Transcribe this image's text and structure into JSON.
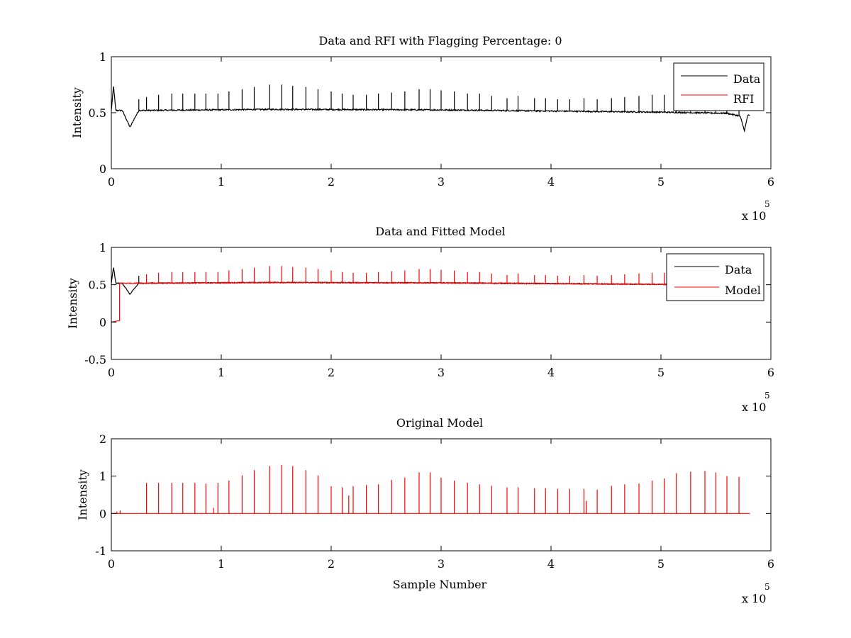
{
  "colors": {
    "data": "#000000",
    "model": "#ff0000",
    "axes": "#000000",
    "background": "#ffffff"
  },
  "chart_data": [
    {
      "type": "line",
      "title": "Data and RFI with Flagging Percentage: 0",
      "xlabel": "",
      "ylabel": "Intensity",
      "xlim": [
        0,
        6
      ],
      "ylim": [
        0,
        1
      ],
      "x_exponent_label": "x 10",
      "x_exponent_power": "5",
      "xticks": [
        "0",
        "1",
        "2",
        "3",
        "4",
        "5",
        "6"
      ],
      "yticks": [
        "0",
        "0.5",
        "1"
      ],
      "legend_placement": "top-right",
      "series": [
        {
          "name": "Data",
          "color": "#000000",
          "x_range": [
            0,
            5.81
          ],
          "baseline": [
            [
              0,
              0.52
            ],
            [
              0.02,
              0.74
            ],
            [
              0.04,
              0.52
            ],
            [
              0.1,
              0.52
            ],
            [
              0.17,
              0.37
            ],
            [
              0.2,
              0.43
            ],
            [
              0.25,
              0.52
            ],
            [
              1.5,
              0.53
            ],
            [
              3.0,
              0.525
            ],
            [
              4.0,
              0.515
            ],
            [
              5.0,
              0.505
            ],
            [
              5.6,
              0.495
            ],
            [
              5.72,
              0.47
            ],
            [
              5.76,
              0.34
            ],
            [
              5.79,
              0.48
            ],
            [
              5.81,
              0.47
            ]
          ],
          "spikes": [
            [
              0.25,
              0.62
            ],
            [
              0.32,
              0.64
            ],
            [
              0.43,
              0.66
            ],
            [
              0.55,
              0.67
            ],
            [
              0.65,
              0.67
            ],
            [
              0.76,
              0.67
            ],
            [
              0.86,
              0.67
            ],
            [
              0.97,
              0.67
            ],
            [
              1.07,
              0.69
            ],
            [
              1.19,
              0.71
            ],
            [
              1.3,
              0.73
            ],
            [
              1.44,
              0.75
            ],
            [
              1.55,
              0.75
            ],
            [
              1.65,
              0.74
            ],
            [
              1.77,
              0.73
            ],
            [
              1.88,
              0.71
            ],
            [
              2.0,
              0.69
            ],
            [
              2.1,
              0.67
            ],
            [
              2.2,
              0.66
            ],
            [
              2.32,
              0.66
            ],
            [
              2.43,
              0.67
            ],
            [
              2.55,
              0.68
            ],
            [
              2.67,
              0.69
            ],
            [
              2.8,
              0.71
            ],
            [
              2.9,
              0.71
            ],
            [
              3.0,
              0.7
            ],
            [
              3.12,
              0.69
            ],
            [
              3.24,
              0.67
            ],
            [
              3.35,
              0.67
            ],
            [
              3.46,
              0.65
            ],
            [
              3.6,
              0.63
            ],
            [
              3.7,
              0.65
            ],
            [
              3.85,
              0.63
            ],
            [
              3.95,
              0.63
            ],
            [
              4.06,
              0.62
            ],
            [
              4.17,
              0.62
            ],
            [
              4.3,
              0.63
            ],
            [
              4.42,
              0.62
            ],
            [
              4.55,
              0.63
            ],
            [
              4.67,
              0.64
            ],
            [
              4.8,
              0.65
            ],
            [
              4.92,
              0.66
            ],
            [
              5.03,
              0.66
            ],
            [
              5.14,
              0.65
            ],
            [
              5.27,
              0.64
            ],
            [
              5.4,
              0.64
            ],
            [
              5.5,
              0.62
            ],
            [
              5.6,
              0.62
            ],
            [
              5.71,
              0.61
            ]
          ]
        },
        {
          "name": "RFI",
          "color": "#ff0000",
          "flagged_points": []
        }
      ]
    },
    {
      "type": "line",
      "title": "Data and Fitted Model",
      "xlabel": "",
      "ylabel": "Intensity",
      "xlim": [
        0,
        6
      ],
      "ylim": [
        -0.5,
        1
      ],
      "x_exponent_label": "x 10",
      "x_exponent_power": "5",
      "xticks": [
        "0",
        "1",
        "2",
        "3",
        "4",
        "5",
        "6"
      ],
      "yticks": [
        "-0.5",
        "0",
        "0.5",
        "1"
      ],
      "legend_placement": "top-right",
      "series": [
        {
          "name": "Data",
          "color": "#000000",
          "x_range": [
            0,
            5.81
          ],
          "baseline": [
            [
              0,
              0.52
            ],
            [
              0.02,
              0.74
            ],
            [
              0.04,
              0.52
            ],
            [
              0.1,
              0.52
            ],
            [
              0.17,
              0.37
            ],
            [
              0.2,
              0.43
            ],
            [
              0.25,
              0.52
            ],
            [
              1.5,
              0.53
            ],
            [
              3.0,
              0.525
            ],
            [
              4.0,
              0.515
            ],
            [
              5.0,
              0.505
            ],
            [
              5.6,
              0.495
            ],
            [
              5.81,
              0.49
            ]
          ],
          "spikes": [
            [
              0.25,
              0.62
            ]
          ]
        },
        {
          "name": "Model",
          "color": "#ff0000",
          "initial_segment": [
            [
              0,
              0.0
            ],
            [
              0.075,
              0.02
            ],
            [
              0.075,
              0.52
            ]
          ],
          "baseline": [
            [
              0.075,
              0.52
            ],
            [
              1.5,
              0.53
            ],
            [
              3.0,
              0.525
            ],
            [
              4.0,
              0.515
            ],
            [
              5.0,
              0.505
            ],
            [
              5.81,
              0.49
            ]
          ],
          "spikes": [
            [
              0.32,
              0.64
            ],
            [
              0.43,
              0.66
            ],
            [
              0.55,
              0.67
            ],
            [
              0.65,
              0.67
            ],
            [
              0.76,
              0.67
            ],
            [
              0.86,
              0.67
            ],
            [
              0.97,
              0.67
            ],
            [
              1.07,
              0.69
            ],
            [
              1.19,
              0.71
            ],
            [
              1.3,
              0.73
            ],
            [
              1.44,
              0.75
            ],
            [
              1.55,
              0.75
            ],
            [
              1.65,
              0.74
            ],
            [
              1.77,
              0.73
            ],
            [
              1.88,
              0.71
            ],
            [
              2.0,
              0.69
            ],
            [
              2.1,
              0.67
            ],
            [
              2.2,
              0.66
            ],
            [
              2.32,
              0.66
            ],
            [
              2.43,
              0.67
            ],
            [
              2.55,
              0.68
            ],
            [
              2.67,
              0.69
            ],
            [
              2.8,
              0.71
            ],
            [
              2.9,
              0.71
            ],
            [
              3.0,
              0.7
            ],
            [
              3.12,
              0.69
            ],
            [
              3.24,
              0.67
            ],
            [
              3.35,
              0.67
            ],
            [
              3.46,
              0.65
            ],
            [
              3.6,
              0.63
            ],
            [
              3.7,
              0.65
            ],
            [
              3.85,
              0.63
            ],
            [
              3.95,
              0.63
            ],
            [
              4.06,
              0.62
            ],
            [
              4.17,
              0.62
            ],
            [
              4.3,
              0.63
            ],
            [
              4.42,
              0.62
            ],
            [
              4.55,
              0.63
            ],
            [
              4.67,
              0.64
            ],
            [
              4.8,
              0.65
            ],
            [
              4.92,
              0.66
            ],
            [
              5.03,
              0.66
            ]
          ]
        }
      ]
    },
    {
      "type": "line",
      "title": "Original Model",
      "xlabel": "Sample Number",
      "ylabel": "Intensity",
      "xlim": [
        0,
        6
      ],
      "ylim": [
        -1,
        2
      ],
      "x_exponent_label": "x 10",
      "x_exponent_power": "5",
      "xticks": [
        "0",
        "1",
        "2",
        "3",
        "4",
        "5",
        "6"
      ],
      "yticks": [
        "-1",
        "0",
        "1",
        "2"
      ],
      "series": [
        {
          "color": "#ff0000",
          "x_range": [
            0,
            5.81
          ],
          "baseline": [
            [
              0,
              0.0
            ],
            [
              5.81,
              0.0
            ]
          ],
          "spikes": [
            [
              0.05,
              0.05
            ],
            [
              0.08,
              0.08
            ],
            [
              0.32,
              0.82
            ],
            [
              0.43,
              0.82
            ],
            [
              0.55,
              0.82
            ],
            [
              0.65,
              0.82
            ],
            [
              0.76,
              0.82
            ],
            [
              0.86,
              0.8
            ],
            [
              0.93,
              0.15
            ],
            [
              0.97,
              0.82
            ],
            [
              1.07,
              0.88
            ],
            [
              1.19,
              1.02
            ],
            [
              1.3,
              1.16
            ],
            [
              1.44,
              1.27
            ],
            [
              1.55,
              1.3
            ],
            [
              1.65,
              1.27
            ],
            [
              1.77,
              1.16
            ],
            [
              1.88,
              1.02
            ],
            [
              2.0,
              0.73
            ],
            [
              2.1,
              0.7
            ],
            [
              2.16,
              0.48
            ],
            [
              2.2,
              0.73
            ],
            [
              2.32,
              0.76
            ],
            [
              2.43,
              0.78
            ],
            [
              2.55,
              0.9
            ],
            [
              2.67,
              0.96
            ],
            [
              2.8,
              1.1
            ],
            [
              2.9,
              1.1
            ],
            [
              3.0,
              0.96
            ],
            [
              3.12,
              0.88
            ],
            [
              3.24,
              0.82
            ],
            [
              3.35,
              0.78
            ],
            [
              3.46,
              0.74
            ],
            [
              3.6,
              0.7
            ],
            [
              3.7,
              0.7
            ],
            [
              3.85,
              0.68
            ],
            [
              3.95,
              0.68
            ],
            [
              4.06,
              0.66
            ],
            [
              4.17,
              0.66
            ],
            [
              4.3,
              0.66
            ],
            [
              4.32,
              0.34
            ],
            [
              4.42,
              0.64
            ],
            [
              4.55,
              0.74
            ],
            [
              4.67,
              0.78
            ],
            [
              4.8,
              0.8
            ],
            [
              4.92,
              0.88
            ],
            [
              5.03,
              0.94
            ],
            [
              5.14,
              1.08
            ],
            [
              5.27,
              1.12
            ],
            [
              5.4,
              1.14
            ],
            [
              5.5,
              1.1
            ],
            [
              5.6,
              1.0
            ],
            [
              5.71,
              0.98
            ]
          ]
        }
      ]
    }
  ]
}
